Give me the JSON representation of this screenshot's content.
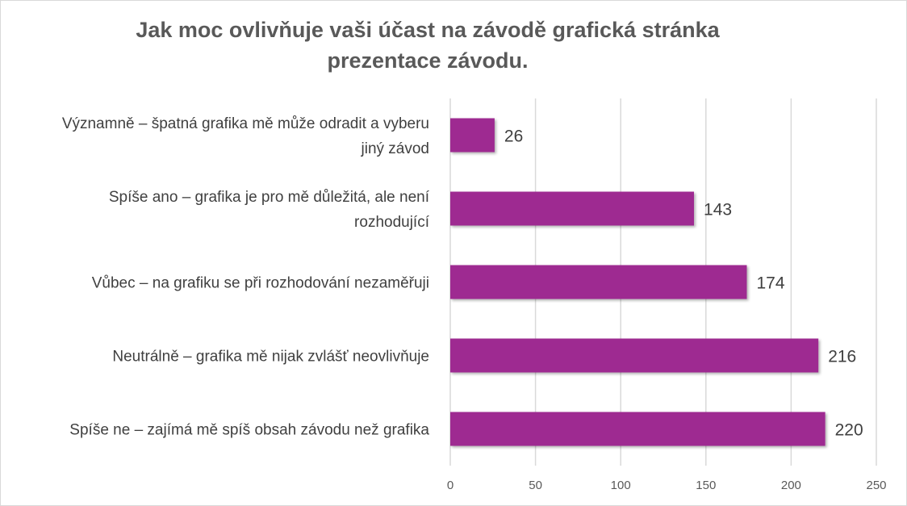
{
  "chart_data": {
    "type": "bar",
    "orientation": "horizontal",
    "title": "Jak moc ovlivňuje vaši účast na závodě grafická stránka prezentace závodu.",
    "title_lines": [
      "Jak moc ovlivňuje vaši účast na závodě grafická stránka",
      "prezentace závodu."
    ],
    "categories": [
      [
        "Významně – špatná grafika mě může odradit a vyberu",
        "jiný závod"
      ],
      [
        "Spíše ano – grafika je pro mě důležitá, ale není",
        "rozhodující"
      ],
      [
        "Vůbec – na grafiku se při rozhodování nezaměřuji"
      ],
      [
        "Neutrálně – grafika mě nijak zvlášť neovlivňuje"
      ],
      [
        "Spíše ne – zajímá mě spíš obsah závodu než grafika"
      ]
    ],
    "values": [
      26,
      143,
      174,
      216,
      220
    ],
    "xlim": [
      0,
      250
    ],
    "xticks": [
      0,
      50,
      100,
      150,
      200,
      250
    ],
    "grid": true,
    "legend": "none",
    "bar_color": "#9e2a91",
    "xlabel": "",
    "ylabel": ""
  }
}
